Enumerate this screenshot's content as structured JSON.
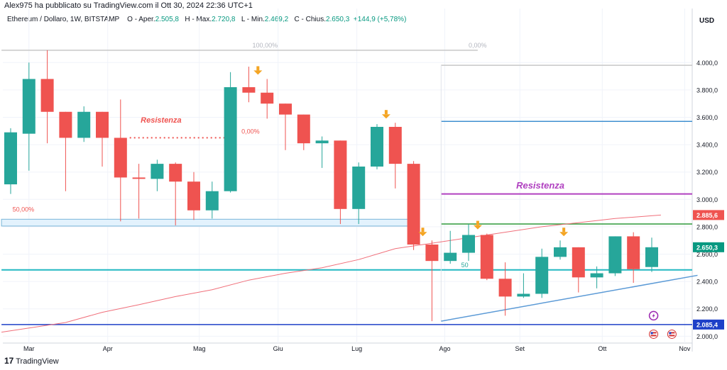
{
  "header": {
    "published": "Alex975 ha pubblicato su TradingView.com il Ott 30, 2024 22:36 UTC+1",
    "symbol": "Ethereum / Dollaro, 1W, BITSTAMP",
    "open_label": "O - Aper.",
    "open_value": "2.505,8",
    "high_label": "H - Max.",
    "high_value": "2.720,8",
    "low_label": "L - Min.",
    "low_value": "2.469,2",
    "close_label": "C - Chius.",
    "close_value": "2.650,3",
    "change_value": "+144,9 (+5,78%)"
  },
  "currency": "USD",
  "footer": {
    "brand": "TradingView",
    "mark": "17"
  },
  "colors": {
    "up": "#26a69a",
    "down": "#ef5350",
    "ma": "#f06f7a",
    "support": "#22b8c2",
    "trend": "#5b9ad6",
    "resist_blue": "#4090d0",
    "resist_purple": "#b040c0",
    "resist_green": "#2e9a3a",
    "fib_gray": "#c8c8c8",
    "zone_fill": "#e3f2fd",
    "zone_stroke": "#79b6d8",
    "arrow": "#f4a524",
    "price_red": "#ef5350",
    "price_teal": "#089981",
    "price_navy": "#1e40c8"
  },
  "chart_data": {
    "type": "candlestick",
    "title": "Ethereum / Dollaro, 1W, BITSTAMP",
    "xlabel": "",
    "ylabel": "USD",
    "ylim": [
      1950,
      4250
    ],
    "grid": true,
    "y_ticks": [
      {
        "value": 4000,
        "label": "4.000,0"
      },
      {
        "value": 3800,
        "label": "3.800,0"
      },
      {
        "value": 3600,
        "label": "3.600,0"
      },
      {
        "value": 3400,
        "label": "3.400,0"
      },
      {
        "value": 3200,
        "label": "3.200,0"
      },
      {
        "value": 3000,
        "label": "3.000,0"
      },
      {
        "value": 2800,
        "label": "2.800,0"
      },
      {
        "value": 2600,
        "label": "2.600,0"
      },
      {
        "value": 2400,
        "label": "2.400,0"
      },
      {
        "value": 2200,
        "label": "2.200,0"
      },
      {
        "value": 2000,
        "label": "2.000,0"
      }
    ],
    "x_ticks": [
      {
        "index": 1,
        "label": "Mar"
      },
      {
        "index": 5.3,
        "label": "Apr"
      },
      {
        "index": 10.3,
        "label": "Mag"
      },
      {
        "index": 14.6,
        "label": "Giu"
      },
      {
        "index": 18.9,
        "label": "Lug"
      },
      {
        "index": 23.7,
        "label": "Ago"
      },
      {
        "index": 27.8,
        "label": "Set"
      },
      {
        "index": 32.3,
        "label": "Ott"
      },
      {
        "index": 36.8,
        "label": "Nov"
      }
    ],
    "candles": [
      {
        "o": 3110,
        "h": 3520,
        "l": 3040,
        "c": 3490
      },
      {
        "o": 3480,
        "h": 4000,
        "l": 3210,
        "c": 3880
      },
      {
        "o": 3880,
        "h": 4090,
        "l": 3410,
        "c": 3640
      },
      {
        "o": 3640,
        "h": 3640,
        "l": 3060,
        "c": 3450
      },
      {
        "o": 3450,
        "h": 3680,
        "l": 3420,
        "c": 3640
      },
      {
        "o": 3640,
        "h": 3640,
        "l": 3240,
        "c": 3450
      },
      {
        "o": 3450,
        "h": 3730,
        "l": 2840,
        "c": 3160
      },
      {
        "o": 3160,
        "h": 3260,
        "l": 2860,
        "c": 3150
      },
      {
        "o": 3150,
        "h": 3290,
        "l": 3060,
        "c": 3260
      },
      {
        "o": 3260,
        "h": 3270,
        "l": 2810,
        "c": 3130
      },
      {
        "o": 3130,
        "h": 3200,
        "l": 2850,
        "c": 2920
      },
      {
        "o": 2920,
        "h": 3130,
        "l": 2860,
        "c": 3060
      },
      {
        "o": 3060,
        "h": 3930,
        "l": 3050,
        "c": 3820
      },
      {
        "o": 3820,
        "h": 3970,
        "l": 3710,
        "c": 3780
      },
      {
        "o": 3780,
        "h": 3880,
        "l": 3590,
        "c": 3700
      },
      {
        "o": 3700,
        "h": 3700,
        "l": 3360,
        "c": 3620
      },
      {
        "o": 3620,
        "h": 3620,
        "l": 3360,
        "c": 3410
      },
      {
        "o": 3410,
        "h": 3460,
        "l": 3230,
        "c": 3430
      },
      {
        "o": 3430,
        "h": 3430,
        "l": 2820,
        "c": 2930
      },
      {
        "o": 2930,
        "h": 3270,
        "l": 2820,
        "c": 3240
      },
      {
        "o": 3240,
        "h": 3550,
        "l": 3220,
        "c": 3530
      },
      {
        "o": 3530,
        "h": 3560,
        "l": 3080,
        "c": 3260
      },
      {
        "o": 3260,
        "h": 3280,
        "l": 2630,
        "c": 2670
      },
      {
        "o": 2670,
        "h": 2700,
        "l": 2110,
        "c": 2550
      },
      {
        "o": 2550,
        "h": 2770,
        "l": 2530,
        "c": 2610
      },
      {
        "o": 2610,
        "h": 2820,
        "l": 2550,
        "c": 2740
      },
      {
        "o": 2740,
        "h": 2750,
        "l": 2410,
        "c": 2420
      },
      {
        "o": 2420,
        "h": 2540,
        "l": 2150,
        "c": 2290
      },
      {
        "o": 2290,
        "h": 2460,
        "l": 2280,
        "c": 2310
      },
      {
        "o": 2310,
        "h": 2640,
        "l": 2280,
        "c": 2580
      },
      {
        "o": 2580,
        "h": 2700,
        "l": 2560,
        "c": 2650
      },
      {
        "o": 2650,
        "h": 2650,
        "l": 2320,
        "c": 2430
      },
      {
        "o": 2430,
        "h": 2510,
        "l": 2350,
        "c": 2460
      },
      {
        "o": 2460,
        "h": 2730,
        "l": 2440,
        "c": 2730
      },
      {
        "o": 2730,
        "h": 2760,
        "l": 2390,
        "c": 2490
      },
      {
        "o": 2505.8,
        "h": 2720.8,
        "l": 2469.2,
        "c": 2650.3
      }
    ],
    "moving_average": [
      {
        "i": -0.5,
        "v": 2030
      },
      {
        "i": 3,
        "v": 2100
      },
      {
        "i": 5,
        "v": 2175
      },
      {
        "i": 7,
        "v": 2230
      },
      {
        "i": 9,
        "v": 2290
      },
      {
        "i": 11,
        "v": 2340
      },
      {
        "i": 13,
        "v": 2410
      },
      {
        "i": 15,
        "v": 2460
      },
      {
        "i": 17,
        "v": 2500
      },
      {
        "i": 19,
        "v": 2560
      },
      {
        "i": 21,
        "v": 2640
      },
      {
        "i": 23,
        "v": 2680
      },
      {
        "i": 25,
        "v": 2720
      },
      {
        "i": 27,
        "v": 2760
      },
      {
        "i": 29,
        "v": 2800
      },
      {
        "i": 31,
        "v": 2830
      },
      {
        "i": 33,
        "v": 2860
      },
      {
        "i": 35.5,
        "v": 2885.6
      }
    ],
    "lines": [
      {
        "name": "fib-100",
        "from": -0.5,
        "to": 25.5,
        "value": 4090
      },
      {
        "name": "fib-0",
        "from": 23.5,
        "to": 37.5,
        "value": 3980
      },
      {
        "name": "resist-blue",
        "from": 23.5,
        "to": 37.5,
        "value": 3570
      },
      {
        "name": "resist-purple",
        "from": 23.5,
        "to": 37.5,
        "value": 3040
      },
      {
        "name": "resist-green",
        "from": 23.5,
        "to": 37.5,
        "value": 2820
      },
      {
        "name": "support-teal",
        "from": -0.5,
        "to": 37.5,
        "value": 2485
      },
      {
        "name": "support-navy",
        "from": -0.5,
        "to": 37.5,
        "value": 2085.4
      }
    ],
    "trendline": {
      "from": {
        "i": 23.5,
        "v": 2110
      },
      "to": {
        "i": 37.5,
        "v": 2445
      }
    },
    "zone": {
      "from": -0.5,
      "to": 22.3,
      "low": 2805,
      "high": 2855
    },
    "dotted_resistance": {
      "from": 6.5,
      "to": 12,
      "value": 3450
    },
    "arrows": [
      13.5,
      20.5,
      22.5,
      25.5,
      30.2
    ],
    "annotations": {
      "resistenza_1": "Resistenza",
      "resistenza_2": "Resistenza",
      "fib_100": "100,00%",
      "fib_0": "0,00%",
      "pct_0": "0,00%",
      "pct_50": "50,00%",
      "pct_50_short": "50"
    },
    "price_labels": [
      {
        "value": 2885.6,
        "label": "2.885,6",
        "color": "price_red"
      },
      {
        "value": 2650.3,
        "label": "2.650,3",
        "color": "price_teal"
      },
      {
        "value": 2085.4,
        "label": "2.085,4",
        "color": "price_navy"
      }
    ]
  }
}
